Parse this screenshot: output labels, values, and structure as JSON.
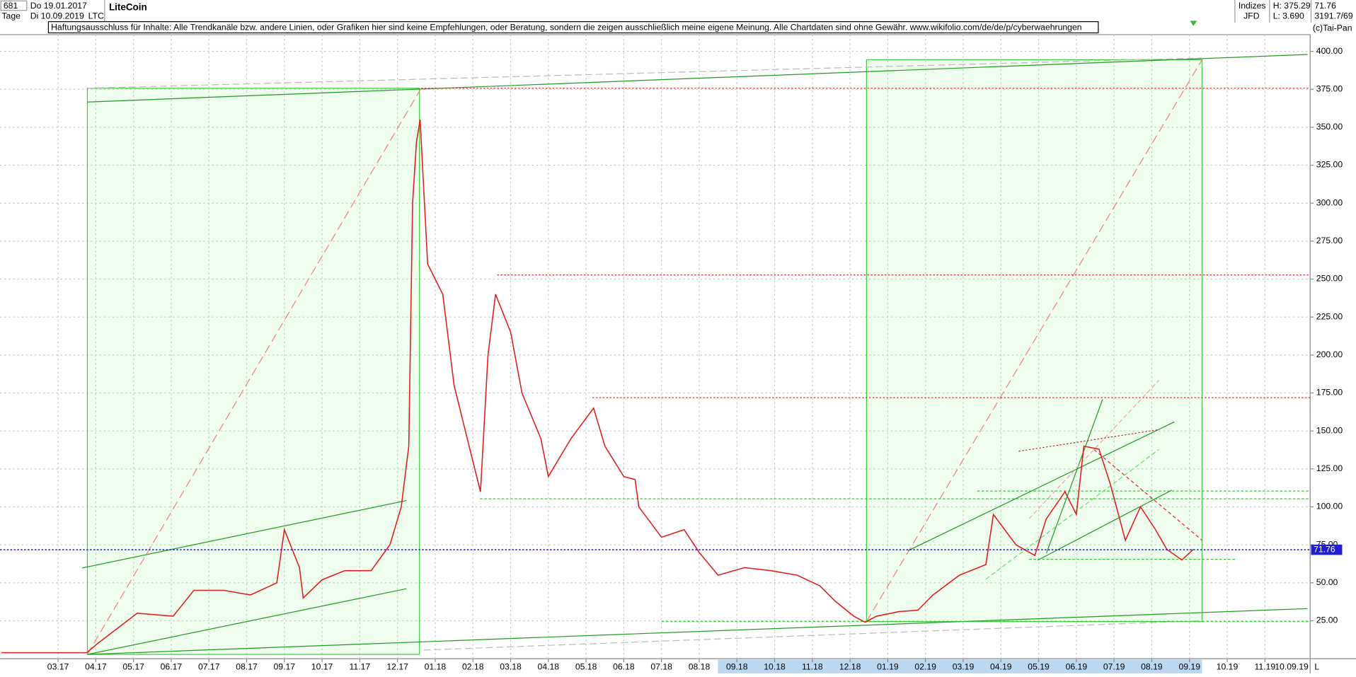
{
  "header": {
    "period": "681",
    "start_date": "Do 19.01.2017",
    "unit": "Tage",
    "end_date": "Di 10.09.2019",
    "disclaimer": "Haftungsausschluss für Inhalte: Alle Trendkanäle bzw. andere Linien, oder Grafiken hier sind keine Empfehlungen, oder Beratung, sondern die zeigen ausschließlich meine eigene Meinung. Alle Chartdaten sind ohne Gewähr.  www.wikifolio.com/de/de/p/cyberwaehrungen",
    "market": "Indizes",
    "source": "JFD",
    "high": "H: 375.29",
    "low": "L: 3.690",
    "counter": "3191.7/69",
    "copyright": "(c)Tai-Pan"
  },
  "chart_data": {
    "type": "line",
    "title": "LiteCoin",
    "symbol": "LTC",
    "color": "#e02020",
    "x": [
      0.5,
      2.76,
      3.05,
      4.1,
      5.05,
      5.6,
      6.4,
      7.1,
      7.8,
      8.0,
      8.4,
      8.5,
      9.0,
      9.6,
      10.3,
      10.8,
      11.1,
      11.3,
      11.4,
      11.5,
      11.6,
      11.8,
      12.2,
      12.5,
      12.8,
      13.2,
      13.4,
      13.6,
      14.0,
      14.3,
      14.8,
      15.0,
      15.6,
      16.2,
      16.5,
      17.0,
      17.3,
      17.4,
      18.0,
      18.6,
      19.0,
      19.5,
      20.2,
      20.9,
      21.6,
      22.2,
      22.6,
      23.1,
      23.4,
      23.7,
      24.3,
      24.8,
      25.2,
      25.9,
      26.6,
      26.8,
      27.4,
      27.9,
      28.2,
      28.7,
      29.0,
      29.2,
      29.6,
      29.9,
      30.3,
      30.7,
      31.1,
      31.4,
      31.8,
      32.1
    ],
    "values": [
      4,
      4,
      10,
      30,
      28,
      45,
      45,
      42,
      50,
      85,
      60,
      40,
      52,
      58,
      58,
      75,
      100,
      140,
      300,
      340,
      355,
      260,
      240,
      180,
      150,
      110,
      200,
      240,
      215,
      175,
      145,
      120,
      145,
      165,
      140,
      120,
      118,
      100,
      80,
      85,
      70,
      55,
      60,
      58,
      55,
      48,
      38,
      28,
      24,
      28,
      31,
      32,
      42,
      55,
      62,
      95,
      75,
      68,
      92,
      110,
      95,
      140,
      138,
      115,
      78,
      100,
      85,
      72,
      65,
      72
    ],
    "last_value": 71.76,
    "xlim": [
      0.46,
      35.2
    ],
    "xticks": [
      {
        "value": 2,
        "label": "03.17"
      },
      {
        "value": 3,
        "label": "04.17"
      },
      {
        "value": 4,
        "label": "05.17"
      },
      {
        "value": 5,
        "label": "06.17"
      },
      {
        "value": 6,
        "label": "07.17"
      },
      {
        "value": 7,
        "label": "08.17"
      },
      {
        "value": 8,
        "label": "09.17"
      },
      {
        "value": 9,
        "label": "10.17"
      },
      {
        "value": 10,
        "label": "11.17"
      },
      {
        "value": 11,
        "label": "12.17"
      },
      {
        "value": 12,
        "label": "01.18"
      },
      {
        "value": 13,
        "label": "02.18"
      },
      {
        "value": 14,
        "label": "03.18"
      },
      {
        "value": 15,
        "label": "04.18"
      },
      {
        "value": 16,
        "label": "05.18"
      },
      {
        "value": 17,
        "label": "06.18"
      },
      {
        "value": 18,
        "label": "07.18"
      },
      {
        "value": 19,
        "label": "08.18"
      },
      {
        "value": 20,
        "label": "09.18"
      },
      {
        "value": 21,
        "label": "10.18"
      },
      {
        "value": 22,
        "label": "11.18"
      },
      {
        "value": 23,
        "label": "12.18"
      },
      {
        "value": 24,
        "label": "01.19"
      },
      {
        "value": 25,
        "label": "02.19"
      },
      {
        "value": 26,
        "label": "03.19"
      },
      {
        "value": 27,
        "label": "04.19"
      },
      {
        "value": 28,
        "label": "05.19"
      },
      {
        "value": 29,
        "label": "06.19"
      },
      {
        "value": 30,
        "label": "07.19"
      },
      {
        "value": 31,
        "label": "08.19"
      },
      {
        "value": 32,
        "label": "09.19"
      },
      {
        "value": 33,
        "label": "10.19"
      },
      {
        "value": 34,
        "label": "11.19"
      }
    ],
    "end_label": "10.09.19",
    "corner_label": "L",
    "ylim": [
      0,
      411
    ],
    "yticks": [
      {
        "value": 25,
        "label": "25.00"
      },
      {
        "value": 50,
        "label": "50.00"
      },
      {
        "value": 75,
        "label": "75.00"
      },
      {
        "value": 100,
        "label": "100.00"
      },
      {
        "value": 125,
        "label": "125.00"
      },
      {
        "value": 150,
        "label": "150.00"
      },
      {
        "value": 175,
        "label": "175.00"
      },
      {
        "value": 200,
        "label": "200.00"
      },
      {
        "value": 225,
        "label": "225.00"
      },
      {
        "value": 250,
        "label": "250.00"
      },
      {
        "value": 275,
        "label": "275.00"
      },
      {
        "value": 300,
        "label": "300.00"
      },
      {
        "value": 325,
        "label": "325.00"
      },
      {
        "value": 350,
        "label": "350.00"
      },
      {
        "value": 375,
        "label": "375.00"
      },
      {
        "value": 400,
        "label": "400.00"
      }
    ],
    "grid": true
  }
}
